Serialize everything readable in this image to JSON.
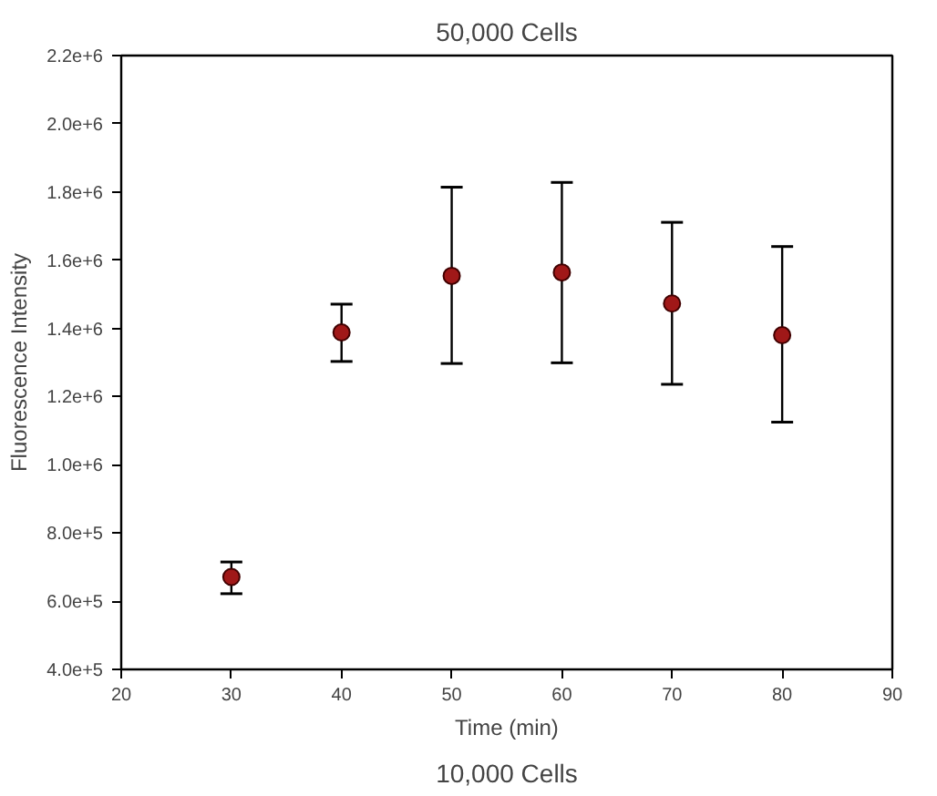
{
  "chart_data": {
    "type": "scatter",
    "title": "50,000 Cells",
    "xlabel": "Time (min)",
    "ylabel": "Fluorescence Intensity",
    "annotations": [
      "10,000 Cells"
    ],
    "x": [
      30,
      40,
      50,
      60,
      70,
      80
    ],
    "series": [
      {
        "color": "#a01818",
        "values": [
          671000,
          1388000,
          1554000,
          1564000,
          1473000,
          1380000
        ],
        "errors": [
          [
            622000,
            715000
          ],
          [
            1303000,
            1471000
          ],
          [
            1297000,
            1814000
          ],
          [
            1299000,
            1828000
          ],
          [
            1236000,
            1711000
          ],
          [
            1125000,
            1640000
          ]
        ]
      }
    ],
    "marker": "circle",
    "grid": false,
    "xlim": [
      20,
      90
    ],
    "xticks": [
      20,
      30,
      40,
      50,
      60,
      70,
      80,
      90
    ],
    "ylim": [
      400000,
      2200000
    ],
    "yticks": [
      {
        "value": 400000,
        "label": "4.0e+5"
      },
      {
        "value": 600000,
        "label": "6.0e+5"
      },
      {
        "value": 800000,
        "label": "8.0e+5"
      },
      {
        "value": 1000000,
        "label": "1.0e+6"
      },
      {
        "value": 1200000,
        "label": "1.2e+6"
      },
      {
        "value": 1400000,
        "label": "1.4e+6"
      },
      {
        "value": 1600000,
        "label": "1.6e+6"
      },
      {
        "value": 1800000,
        "label": "1.8e+6"
      },
      {
        "value": 2000000,
        "label": "2.0e+6"
      },
      {
        "value": 2200000,
        "label": "2.2e+6"
      }
    ]
  }
}
